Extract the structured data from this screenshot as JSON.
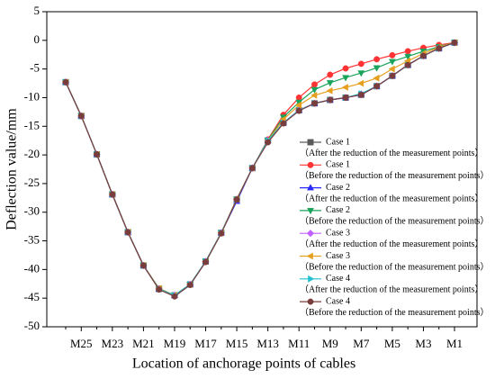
{
  "chart_data": {
    "type": "line",
    "xlabel": "Location of anchorage points of cables",
    "ylabel": "Deflection value/mm",
    "categories": [
      null,
      "M25",
      null,
      "M23",
      null,
      "M21",
      null,
      "M19",
      null,
      "M17",
      null,
      "M15",
      null,
      "M13",
      null,
      "M11",
      null,
      "M9",
      null,
      "M7",
      null,
      "M5",
      null,
      "M3",
      null,
      "M1"
    ],
    "ylim": [
      -50,
      5
    ],
    "yticks": [
      -50,
      -45,
      -40,
      -35,
      -30,
      -25,
      -20,
      -15,
      -10,
      -5,
      0,
      5
    ],
    "series": [
      {
        "name": "Case 1",
        "description": "（After  the reduction of the measurement points）",
        "color": "#5a5a5a",
        "marker": "square",
        "values": [
          -7.3,
          -13.2,
          -19.9,
          -26.9,
          -33.5,
          -39.3,
          -43.4,
          -44.5,
          -42.6,
          -38.6,
          -33.6,
          -27.8,
          -22.3,
          -17.5,
          -14.4,
          -12.2,
          -11,
          -10.4,
          -10,
          -9.5,
          -8,
          -6.2,
          -4.3,
          -2.7,
          -1.4,
          -0.4
        ]
      },
      {
        "name": "Case 1",
        "description": "（Before  the reduction of the measurement points）",
        "color": "#ff3333",
        "marker": "circle",
        "values": [
          -7.3,
          -13.2,
          -19.9,
          -26.9,
          -33.5,
          -39.3,
          -43.3,
          -44.5,
          -42.6,
          -38.6,
          -33.6,
          -27.7,
          -22.3,
          -17.3,
          -13,
          -10,
          -7.7,
          -6,
          -4.9,
          -4.1,
          -3.3,
          -2.6,
          -1.9,
          -1.3,
          -0.8,
          -0.4
        ]
      },
      {
        "name": "Case 2",
        "description": "（After  the reduction of the measurement points）",
        "color": "#2a2aff",
        "marker": "triangle-up",
        "values": [
          -7.3,
          -13.2,
          -19.9,
          -26.9,
          -33.5,
          -39.3,
          -43.4,
          -44.5,
          -42.6,
          -38.6,
          -33.6,
          -28.1,
          -22.3,
          -17.5,
          -14.4,
          -12.2,
          -11,
          -10.4,
          -10,
          -9.4,
          -8,
          -6.2,
          -4.3,
          -2.7,
          -1.4,
          -0.4
        ]
      },
      {
        "name": "Case 2",
        "description": "（Before  the reduction of the measurement points）",
        "color": "#1aa35a",
        "marker": "triangle-down",
        "values": [
          -7.3,
          -13.2,
          -19.9,
          -26.9,
          -33.5,
          -39.3,
          -43.3,
          -44.5,
          -42.6,
          -38.6,
          -33.6,
          -27.7,
          -22.3,
          -17.4,
          -13.4,
          -10.8,
          -8.6,
          -7.4,
          -6.5,
          -5.7,
          -4.8,
          -3.7,
          -2.8,
          -1.9,
          -1.1,
          -0.4
        ]
      },
      {
        "name": "Case 3",
        "description": "（After  the reduction of the measurement points）",
        "color": "#c060ff",
        "marker": "diamond",
        "values": [
          -7.3,
          -13.2,
          -19.9,
          -26.9,
          -33.5,
          -39.3,
          -43.4,
          -44.5,
          -42.6,
          -38.6,
          -33.6,
          -27.8,
          -22.3,
          -17.5,
          -14.4,
          -12.2,
          -11,
          -10.4,
          -10,
          -9.5,
          -8,
          -6.2,
          -4.3,
          -2.7,
          -1.4,
          -0.4
        ]
      },
      {
        "name": "Case 3",
        "description": "（Before  the reduction of the measurement points）",
        "color": "#e6a020",
        "marker": "triangle-left",
        "values": [
          -7.3,
          -13.2,
          -19.9,
          -26.9,
          -33.5,
          -39.3,
          -43.3,
          -44.5,
          -42.6,
          -38.6,
          -33.6,
          -27.7,
          -22.3,
          -17.5,
          -13.8,
          -11.3,
          -9.6,
          -8.8,
          -8.2,
          -7.5,
          -6.6,
          -5,
          -3.6,
          -2.3,
          -1.2,
          -0.4
        ]
      },
      {
        "name": "Case 4",
        "description": "（After  the reduction of the measurement points）",
        "color": "#20c0d0",
        "marker": "triangle-right",
        "values": [
          -7.3,
          -13.2,
          -19.9,
          -26.9,
          -33.5,
          -39.3,
          -43.4,
          -44.5,
          -42.6,
          -38.6,
          -33.6,
          -27.8,
          -22.3,
          -17.5,
          -14.4,
          -12.2,
          -11,
          -10.4,
          -10,
          -9.3,
          -8,
          -6.2,
          -4.3,
          -2.7,
          -1.4,
          -0.4
        ]
      },
      {
        "name": "Case 4",
        "description": "（Before  the reduction of the measurement points）",
        "color": "#7a3d3d",
        "marker": "circle",
        "values": [
          -7.3,
          -13.2,
          -19.9,
          -26.9,
          -33.5,
          -39.3,
          -43.5,
          -44.7,
          -42.7,
          -38.7,
          -33.7,
          -27.8,
          -22.3,
          -17.8,
          -14.5,
          -12.3,
          -11,
          -10.4,
          -10,
          -9.5,
          -8,
          -6.2,
          -4.3,
          -2.7,
          -1.4,
          -0.4
        ]
      }
    ]
  }
}
